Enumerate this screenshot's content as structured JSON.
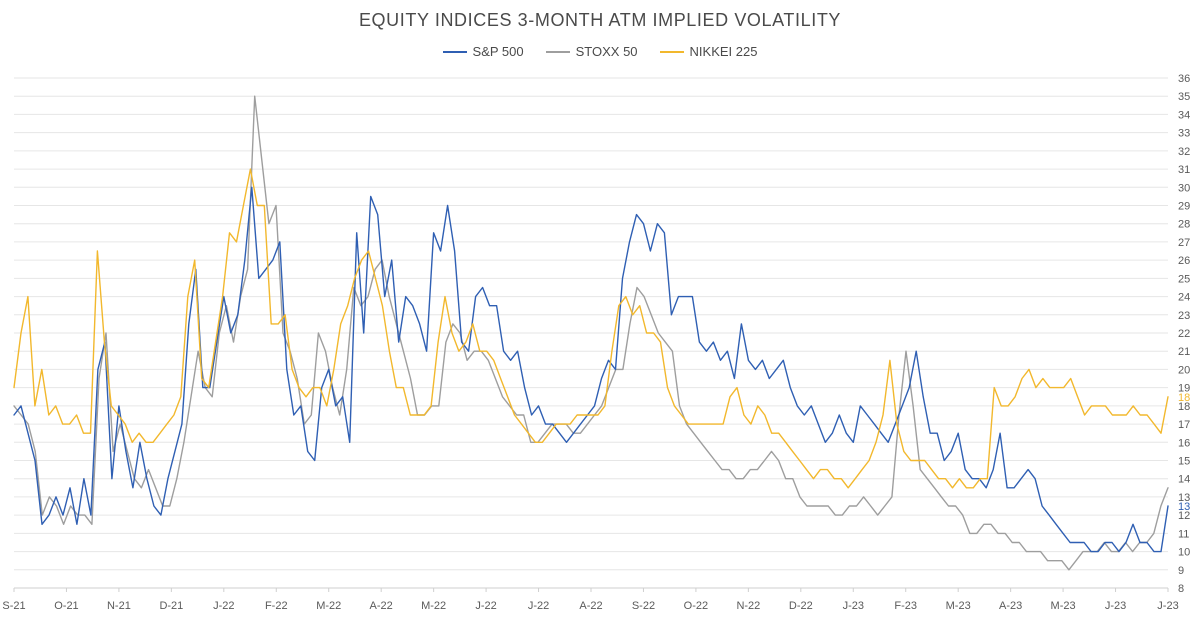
{
  "chart_data": {
    "type": "line",
    "title": "EQUITY INDICES 3-MONTH ATM IMPLIED VOLATILITY",
    "xlabel": "",
    "ylabel": "",
    "ylim": [
      8,
      36
    ],
    "y_ticks": [
      8,
      9,
      10,
      11,
      12,
      13,
      14,
      15,
      16,
      17,
      18,
      19,
      20,
      21,
      22,
      23,
      24,
      25,
      26,
      27,
      28,
      29,
      30,
      31,
      32,
      33,
      34,
      35,
      36
    ],
    "y_axis_side": "right",
    "grid": true,
    "legend_position": "top-center",
    "x_tick_labels": [
      "S-21",
      "O-21",
      "N-21",
      "D-21",
      "J-22",
      "F-22",
      "M-22",
      "A-22",
      "M-22",
      "J-22",
      "J-22",
      "A-22",
      "S-22",
      "O-22",
      "N-22",
      "D-22",
      "J-23",
      "F-23",
      "M-23",
      "A-23",
      "M-23",
      "J-23",
      "J-23"
    ],
    "end_labels": [
      {
        "series": "S&P 500",
        "text": "13"
      },
      {
        "series": "NIKKEI 225",
        "text": "18"
      }
    ],
    "series": [
      {
        "name": "S&P 500",
        "color": "#2f5fb3",
        "values": [
          17.5,
          18.0,
          16.5,
          15.0,
          11.5,
          12.0,
          13.0,
          12.0,
          13.5,
          11.5,
          14.0,
          12.0,
          20.0,
          21.5,
          14.0,
          18.0,
          15.5,
          13.5,
          16.0,
          14.0,
          12.5,
          12.0,
          14.0,
          15.5,
          17.0,
          22.5,
          25.5,
          19.0,
          19.0,
          21.5,
          24.0,
          22.0,
          23.0,
          26.0,
          30.0,
          25.0,
          25.5,
          26.0,
          27.0,
          20.0,
          17.5,
          18.0,
          15.5,
          15.0,
          19.0,
          20.0,
          18.0,
          18.5,
          16.0,
          27.5,
          22.0,
          29.5,
          28.5,
          24.0,
          26.0,
          21.5,
          24.0,
          23.5,
          22.5,
          21.0,
          27.5,
          26.5,
          29.0,
          26.5,
          21.5,
          21.0,
          24.0,
          24.5,
          23.5,
          23.5,
          21.0,
          20.5,
          21.0,
          19.0,
          17.5,
          18.0,
          17.0,
          17.0,
          16.5,
          16.0,
          16.5,
          17.0,
          17.5,
          18.0,
          19.5,
          20.5,
          20.0,
          25.0,
          27.0,
          28.5,
          28.0,
          26.5,
          28.0,
          27.5,
          23.0,
          24.0,
          24.0,
          24.0,
          21.5,
          21.0,
          21.5,
          20.5,
          21.0,
          19.5,
          22.5,
          20.5,
          20.0,
          20.5,
          19.5,
          20.0,
          20.5,
          19.0,
          18.0,
          17.5,
          18.0,
          17.0,
          16.0,
          16.5,
          17.5,
          16.5,
          16.0,
          18.0,
          17.5,
          17.0,
          16.5,
          16.0,
          17.0,
          18.0,
          19.0,
          21.0,
          18.5,
          16.5,
          16.5,
          15.0,
          15.5,
          16.5,
          14.5,
          14.0,
          14.0,
          13.5,
          14.5,
          16.5,
          13.5,
          13.5,
          14.0,
          14.5,
          14.0,
          12.5,
          12.0,
          11.5,
          11.0,
          10.5,
          10.5,
          10.5,
          10.0,
          10.0,
          10.5,
          10.5,
          10.0,
          10.5,
          11.5,
          10.5,
          10.5,
          10.0,
          10.0,
          12.5
        ]
      },
      {
        "name": "STOXX 50",
        "color": "#9e9e9e",
        "values": [
          18.0,
          17.5,
          17.0,
          15.5,
          12.0,
          13.0,
          12.5,
          11.5,
          12.5,
          12.0,
          12.0,
          11.5,
          19.5,
          22.0,
          15.5,
          17.0,
          15.5,
          14.0,
          13.5,
          14.5,
          13.5,
          12.5,
          12.5,
          14.0,
          16.0,
          18.5,
          21.0,
          19.0,
          18.5,
          22.0,
          23.5,
          21.5,
          24.0,
          25.5,
          35.0,
          31.5,
          28.0,
          29.0,
          22.0,
          21.0,
          19.5,
          17.0,
          17.5,
          22.0,
          21.0,
          19.0,
          17.5,
          20.0,
          24.5,
          23.5,
          24.0,
          25.5,
          26.0,
          24.0,
          22.5,
          21.0,
          19.5,
          17.5,
          17.5,
          18.0,
          18.0,
          21.5,
          22.5,
          22.0,
          20.5,
          21.0,
          21.0,
          20.5,
          19.5,
          18.5,
          18.0,
          17.5,
          17.5,
          16.0,
          16.0,
          16.5,
          17.0,
          17.0,
          17.0,
          16.5,
          16.5,
          17.0,
          17.5,
          18.0,
          19.0,
          20.0,
          20.0,
          22.5,
          24.5,
          24.0,
          23.0,
          22.0,
          21.5,
          21.0,
          18.0,
          17.0,
          16.5,
          16.0,
          15.5,
          15.0,
          14.5,
          14.5,
          14.0,
          14.0,
          14.5,
          14.5,
          15.0,
          15.5,
          15.0,
          14.0,
          14.0,
          13.0,
          12.5,
          12.5,
          12.5,
          12.5,
          12.0,
          12.0,
          12.5,
          12.5,
          13.0,
          12.5,
          12.0,
          12.5,
          13.0,
          17.5,
          21.0,
          18.0,
          14.5,
          14.0,
          13.5,
          13.0,
          12.5,
          12.5,
          12.0,
          11.0,
          11.0,
          11.5,
          11.5,
          11.0,
          11.0,
          10.5,
          10.5,
          10.0,
          10.0,
          10.0,
          9.5,
          9.5,
          9.5,
          9.0,
          9.5,
          10.0,
          10.0,
          10.0,
          10.5,
          10.0,
          10.0,
          10.5,
          10.0,
          10.5,
          10.5,
          11.0,
          12.5,
          13.5
        ]
      },
      {
        "name": "NIKKEI 225",
        "color": "#f2b82d",
        "values": [
          19.0,
          22.0,
          24.0,
          18.0,
          20.0,
          17.5,
          18.0,
          17.0,
          17.0,
          17.5,
          16.5,
          16.5,
          26.5,
          21.5,
          18.0,
          17.5,
          17.0,
          16.0,
          16.5,
          16.0,
          16.0,
          16.5,
          17.0,
          17.5,
          18.5,
          24.0,
          26.0,
          19.5,
          19.0,
          21.5,
          24.0,
          27.5,
          27.0,
          29.0,
          31.0,
          29.0,
          29.0,
          22.5,
          22.5,
          23.0,
          20.0,
          19.0,
          18.5,
          19.0,
          19.0,
          18.0,
          20.0,
          22.5,
          23.5,
          25.0,
          26.0,
          26.5,
          25.0,
          23.5,
          21.0,
          19.0,
          19.0,
          17.5,
          17.5,
          17.5,
          18.0,
          21.5,
          24.0,
          22.0,
          21.0,
          21.5,
          22.5,
          21.0,
          21.0,
          20.5,
          19.5,
          18.5,
          17.5,
          17.0,
          16.5,
          16.0,
          16.0,
          16.5,
          17.0,
          17.0,
          17.0,
          17.5,
          17.5,
          17.5,
          17.5,
          18.0,
          21.0,
          23.5,
          24.0,
          23.0,
          23.5,
          22.0,
          22.0,
          21.5,
          19.0,
          18.0,
          17.5,
          17.0,
          17.0,
          17.0,
          17.0,
          17.0,
          17.0,
          18.5,
          19.0,
          17.5,
          17.0,
          18.0,
          17.5,
          16.5,
          16.5,
          16.0,
          15.5,
          15.0,
          14.5,
          14.0,
          14.5,
          14.5,
          14.0,
          14.0,
          13.5,
          14.0,
          14.5,
          15.0,
          16.0,
          17.5,
          20.5,
          17.0,
          15.5,
          15.0,
          15.0,
          15.0,
          14.5,
          14.0,
          14.0,
          13.5,
          14.0,
          13.5,
          13.5,
          14.0,
          14.0,
          19.0,
          18.0,
          18.0,
          18.5,
          19.5,
          20.0,
          19.0,
          19.5,
          19.0,
          19.0,
          19.0,
          19.5,
          18.5,
          17.5,
          18.0,
          18.0,
          18.0,
          17.5,
          17.5,
          17.5,
          18.0,
          17.5,
          17.5,
          17.0,
          16.5,
          18.5
        ]
      }
    ]
  }
}
